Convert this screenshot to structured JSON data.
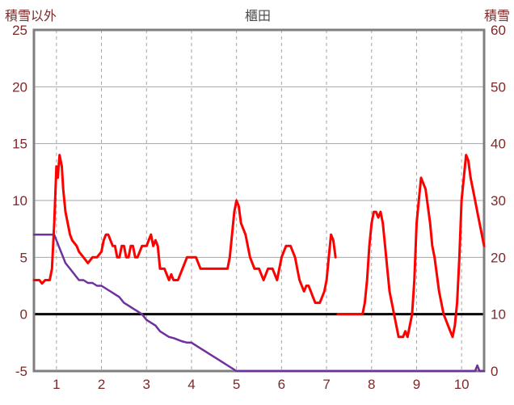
{
  "header": {
    "left_label": "積雪以外",
    "title": "櫃田",
    "right_label": "積雪"
  },
  "chart_data": {
    "type": "line",
    "title": "櫃田",
    "left_axis": {
      "label": "積雪以外",
      "min": -5,
      "max": 25,
      "ticks": [
        25,
        20,
        15,
        10,
        5,
        0,
        -5
      ]
    },
    "right_axis": {
      "label": "積雪",
      "min": 0,
      "max": 60,
      "ticks": [
        60,
        50,
        40,
        30,
        20,
        10,
        0
      ]
    },
    "x_axis": {
      "min": 0.5,
      "max": 10.5,
      "ticks": [
        1,
        2,
        3,
        4,
        5,
        6,
        7,
        8,
        9,
        10
      ]
    },
    "grid": {
      "horizontal": "solid",
      "vertical": "dashed"
    },
    "styles": {
      "grid_color": "#a6a6a6",
      "border_color": "#7f7f7f",
      "zero_line_color": "#000000",
      "tick_label_color": "#7a2a2a",
      "title_color": "#4d4d4d"
    },
    "series": [
      {
        "name": "積雪以外",
        "axis": "left",
        "color": "#ff0000",
        "width": 3,
        "segments": [
          [
            [
              0.5,
              3
            ],
            [
              0.62,
              3
            ],
            [
              0.68,
              2.7
            ],
            [
              0.75,
              3
            ],
            [
              0.85,
              3
            ],
            [
              0.9,
              4
            ],
            [
              0.95,
              8
            ],
            [
              1.0,
              13
            ],
            [
              1.03,
              12
            ],
            [
              1.07,
              14
            ],
            [
              1.12,
              13
            ],
            [
              1.15,
              11
            ],
            [
              1.2,
              9
            ],
            [
              1.25,
              8
            ],
            [
              1.3,
              7
            ],
            [
              1.35,
              6.5
            ],
            [
              1.45,
              6
            ],
            [
              1.5,
              5.5
            ],
            [
              1.6,
              5
            ],
            [
              1.7,
              4.5
            ],
            [
              1.8,
              5
            ],
            [
              1.9,
              5
            ],
            [
              2.0,
              5.5
            ],
            [
              2.05,
              6.5
            ],
            [
              2.1,
              7
            ],
            [
              2.15,
              7
            ],
            [
              2.2,
              6.5
            ],
            [
              2.25,
              6
            ],
            [
              2.3,
              6
            ],
            [
              2.35,
              5
            ],
            [
              2.4,
              5
            ],
            [
              2.45,
              6
            ],
            [
              2.5,
              6
            ],
            [
              2.55,
              5
            ],
            [
              2.6,
              5
            ],
            [
              2.65,
              6
            ],
            [
              2.7,
              6
            ],
            [
              2.75,
              5
            ],
            [
              2.8,
              5
            ],
            [
              2.85,
              5.5
            ],
            [
              2.9,
              6
            ],
            [
              3.0,
              6
            ],
            [
              3.05,
              6.5
            ],
            [
              3.1,
              7
            ],
            [
              3.15,
              6
            ],
            [
              3.2,
              6.5
            ],
            [
              3.25,
              6
            ],
            [
              3.3,
              4
            ],
            [
              3.4,
              4
            ],
            [
              3.45,
              3.5
            ],
            [
              3.5,
              3
            ],
            [
              3.55,
              3.5
            ],
            [
              3.6,
              3
            ],
            [
              3.7,
              3
            ],
            [
              3.75,
              3.5
            ],
            [
              3.8,
              4
            ],
            [
              3.9,
              5
            ],
            [
              4.0,
              5
            ],
            [
              4.1,
              5
            ],
            [
              4.15,
              4.5
            ],
            [
              4.2,
              4
            ],
            [
              4.35,
              4
            ],
            [
              4.5,
              4
            ],
            [
              4.65,
              4
            ],
            [
              4.8,
              4
            ],
            [
              4.85,
              5
            ],
            [
              4.9,
              7
            ],
            [
              4.95,
              9
            ],
            [
              5.0,
              10
            ],
            [
              5.05,
              9.5
            ],
            [
              5.1,
              8
            ],
            [
              5.2,
              7
            ],
            [
              5.25,
              6
            ],
            [
              5.3,
              5
            ],
            [
              5.4,
              4
            ],
            [
              5.5,
              4
            ],
            [
              5.55,
              3.5
            ],
            [
              5.6,
              3
            ],
            [
              5.7,
              4
            ],
            [
              5.8,
              4
            ],
            [
              5.85,
              3.5
            ],
            [
              5.9,
              3
            ],
            [
              5.95,
              4
            ],
            [
              6.0,
              5
            ],
            [
              6.05,
              5.5
            ],
            [
              6.1,
              6
            ],
            [
              6.2,
              6
            ],
            [
              6.25,
              5.5
            ],
            [
              6.3,
              5
            ],
            [
              6.35,
              4
            ],
            [
              6.4,
              3
            ],
            [
              6.45,
              2.5
            ],
            [
              6.5,
              2
            ],
            [
              6.55,
              2.5
            ],
            [
              6.6,
              2.5
            ],
            [
              6.65,
              2
            ],
            [
              6.7,
              1.5
            ],
            [
              6.75,
              1
            ],
            [
              6.85,
              1
            ],
            [
              6.9,
              1.5
            ],
            [
              6.95,
              2
            ],
            [
              7.0,
              3
            ],
            [
              7.05,
              5
            ],
            [
              7.1,
              7
            ],
            [
              7.15,
              6.5
            ],
            [
              7.2,
              5
            ]
          ],
          [
            [
              7.25,
              0
            ],
            [
              7.4,
              0
            ],
            [
              7.6,
              0
            ],
            [
              7.8,
              0
            ],
            [
              7.85,
              1
            ],
            [
              7.9,
              3
            ],
            [
              7.95,
              6
            ],
            [
              8.0,
              8
            ],
            [
              8.05,
              9
            ],
            [
              8.1,
              9
            ],
            [
              8.15,
              8.5
            ],
            [
              8.2,
              9
            ],
            [
              8.25,
              8
            ],
            [
              8.3,
              6
            ],
            [
              8.35,
              4
            ],
            [
              8.4,
              2
            ],
            [
              8.45,
              1
            ],
            [
              8.5,
              0
            ],
            [
              8.55,
              -1
            ],
            [
              8.6,
              -2
            ],
            [
              8.7,
              -2
            ],
            [
              8.75,
              -1.5
            ],
            [
              8.8,
              -2
            ],
            [
              8.85,
              -1
            ],
            [
              8.9,
              0
            ],
            [
              8.95,
              3
            ],
            [
              9.0,
              8
            ],
            [
              9.05,
              10
            ],
            [
              9.1,
              12
            ],
            [
              9.15,
              11.5
            ],
            [
              9.2,
              11
            ],
            [
              9.3,
              8
            ],
            [
              9.35,
              6
            ],
            [
              9.4,
              5
            ],
            [
              9.5,
              2
            ],
            [
              9.55,
              1
            ],
            [
              9.6,
              0
            ],
            [
              9.65,
              -0.5
            ],
            [
              9.7,
              -1
            ],
            [
              9.75,
              -1.5
            ],
            [
              9.8,
              -2
            ],
            [
              9.85,
              -1
            ],
            [
              9.9,
              1
            ],
            [
              9.95,
              5
            ],
            [
              10.0,
              10
            ],
            [
              10.05,
              12
            ],
            [
              10.1,
              14
            ],
            [
              10.15,
              13.5
            ],
            [
              10.2,
              12
            ],
            [
              10.25,
              11
            ],
            [
              10.3,
              10
            ],
            [
              10.35,
              9
            ],
            [
              10.4,
              8
            ],
            [
              10.45,
              7
            ],
            [
              10.5,
              6
            ]
          ]
        ]
      },
      {
        "name": "積雪",
        "axis": "right",
        "color": "#7030a0",
        "width": 2.5,
        "segments": [
          [
            [
              0.5,
              24
            ],
            [
              0.95,
              24
            ],
            [
              1.0,
              23
            ],
            [
              1.05,
              22
            ],
            [
              1.1,
              21
            ],
            [
              1.15,
              20
            ],
            [
              1.2,
              19
            ],
            [
              1.3,
              18
            ],
            [
              1.4,
              17
            ],
            [
              1.5,
              16
            ],
            [
              1.6,
              16
            ],
            [
              1.7,
              15.5
            ],
            [
              1.8,
              15.5
            ],
            [
              1.9,
              15
            ],
            [
              2.0,
              15
            ],
            [
              2.1,
              14.5
            ],
            [
              2.2,
              14
            ],
            [
              2.3,
              13.5
            ],
            [
              2.4,
              13
            ],
            [
              2.5,
              12
            ],
            [
              2.6,
              11.5
            ],
            [
              2.7,
              11
            ],
            [
              2.8,
              10.5
            ],
            [
              2.9,
              10
            ],
            [
              3.0,
              9
            ],
            [
              3.1,
              8.5
            ],
            [
              3.2,
              8
            ],
            [
              3.3,
              7
            ],
            [
              3.4,
              6.5
            ],
            [
              3.5,
              6
            ],
            [
              3.6,
              5.8
            ],
            [
              3.7,
              5.5
            ],
            [
              3.8,
              5.2
            ],
            [
              3.9,
              5
            ],
            [
              4.0,
              5
            ],
            [
              4.1,
              4.5
            ],
            [
              4.2,
              4
            ],
            [
              4.3,
              3.5
            ],
            [
              4.4,
              3
            ],
            [
              4.5,
              2.5
            ],
            [
              4.6,
              2
            ],
            [
              4.7,
              1.5
            ],
            [
              4.8,
              1
            ],
            [
              4.9,
              0.5
            ],
            [
              5.0,
              0
            ],
            [
              6.0,
              0
            ],
            [
              7.0,
              0
            ],
            [
              8.0,
              0
            ],
            [
              9.0,
              0
            ],
            [
              10.0,
              0
            ],
            [
              10.3,
              0
            ],
            [
              10.35,
              1
            ],
            [
              10.4,
              0
            ],
            [
              10.5,
              0
            ]
          ]
        ]
      }
    ]
  }
}
